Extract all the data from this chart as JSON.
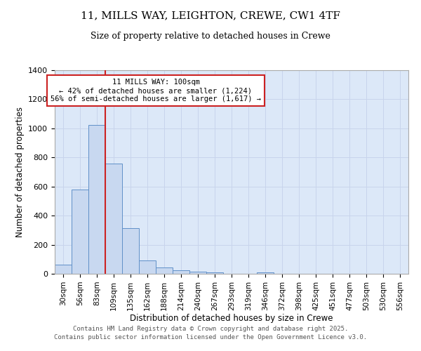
{
  "title1": "11, MILLS WAY, LEIGHTON, CREWE, CW1 4TF",
  "title2": "Size of property relative to detached houses in Crewe",
  "xlabel": "Distribution of detached houses by size in Crewe",
  "ylabel": "Number of detached properties",
  "categories": [
    "30sqm",
    "56sqm",
    "83sqm",
    "109sqm",
    "135sqm",
    "162sqm",
    "188sqm",
    "214sqm",
    "240sqm",
    "267sqm",
    "293sqm",
    "319sqm",
    "346sqm",
    "372sqm",
    "398sqm",
    "425sqm",
    "451sqm",
    "477sqm",
    "503sqm",
    "530sqm",
    "556sqm"
  ],
  "values": [
    65,
    580,
    1025,
    760,
    315,
    90,
    42,
    22,
    15,
    8,
    0,
    0,
    8,
    0,
    0,
    0,
    0,
    0,
    0,
    0,
    0
  ],
  "bar_color": "#c8d8f0",
  "bar_edge_color": "#6090c8",
  "vline_color": "#cc2222",
  "vline_position": 2.5,
  "annotation_title": "11 MILLS WAY: 100sqm",
  "annotation_line1": "← 42% of detached houses are smaller (1,224)",
  "annotation_line2": "56% of semi-detached houses are larger (1,617) →",
  "annotation_box_color": "#ffffff",
  "annotation_box_edge": "#cc2222",
  "ylim": [
    0,
    1400
  ],
  "yticks": [
    0,
    200,
    400,
    600,
    800,
    1000,
    1200,
    1400
  ],
  "grid_color": "#c8d4ec",
  "bg_color": "#dce8f8",
  "footer1": "Contains HM Land Registry data © Crown copyright and database right 2025.",
  "footer2": "Contains public sector information licensed under the Open Government Licence v3.0."
}
